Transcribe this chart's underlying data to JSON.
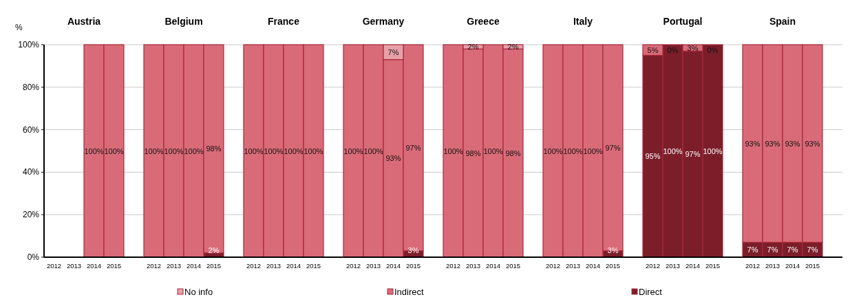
{
  "chart_data": [
    {
      "type": "bar",
      "title": "Austria",
      "ylabel": "%",
      "categories": [
        "2012",
        "2013",
        "2014",
        "2015"
      ],
      "stacked": true,
      "ylim": [
        0,
        100
      ],
      "yticks": [
        {
          "value": 0,
          "label": "0%"
        },
        {
          "value": 20,
          "label": "20%"
        },
        {
          "value": 40,
          "label": "40%"
        },
        {
          "value": 60,
          "label": "60%"
        },
        {
          "value": 80,
          "label": "80%"
        },
        {
          "value": 100,
          "label": "100%"
        }
      ],
      "grid": "y",
      "legend": "bottom",
      "series": [
        {
          "name": "Direct",
          "color": "#7b1e2a",
          "values": [
            null,
            null,
            0,
            0
          ]
        },
        {
          "name": "Indirect",
          "color": "#d96b78",
          "values": [
            null,
            null,
            100,
            100
          ],
          "value_labels": [
            null,
            null,
            "100%",
            "100%"
          ]
        },
        {
          "name": "No info",
          "color": "#e8a0a8",
          "values": [
            null,
            null,
            0,
            0
          ]
        }
      ]
    },
    {
      "type": "bar",
      "title": "Belgium",
      "categories": [
        "2012",
        "2013",
        "2014",
        "2015"
      ],
      "stacked": true,
      "ylim": [
        0,
        100
      ],
      "yticks": [
        0,
        20,
        40,
        60,
        80,
        100
      ],
      "grid": "y",
      "tick_labels": "x",
      "series": [
        {
          "color": "#7b1e2a",
          "values": [
            0,
            0,
            0,
            2
          ],
          "value_labels": [
            null,
            null,
            null,
            "2%"
          ]
        },
        {
          "color": "#d96b78",
          "values": [
            100,
            100,
            100,
            98
          ],
          "value_labels": [
            "100%",
            "100%",
            "100%",
            "98%"
          ]
        },
        {
          "color": "#e8a0a8",
          "values": [
            0,
            0,
            0,
            0
          ]
        }
      ]
    },
    {
      "type": "bar",
      "title": "France",
      "categories": [
        "2012",
        "2013",
        "2014",
        "2015"
      ],
      "stacked": true,
      "ylim": [
        0,
        100
      ],
      "yticks": [
        0,
        20,
        40,
        60,
        80,
        100
      ],
      "grid": "y",
      "tick_labels": "x",
      "series": [
        {
          "color": "#7b1e2a",
          "values": [
            0,
            0,
            0,
            0
          ]
        },
        {
          "color": "#d96b78",
          "values": [
            100,
            100,
            100,
            100
          ],
          "value_labels": [
            "100%",
            "100%",
            "100%",
            "100%"
          ]
        },
        {
          "color": "#e8a0a8",
          "values": [
            0,
            0,
            0,
            0
          ]
        }
      ]
    },
    {
      "type": "bar",
      "title": "Germany",
      "categories": [
        "2012",
        "2013",
        "2014",
        "2015"
      ],
      "stacked": true,
      "ylim": [
        0,
        100
      ],
      "yticks": [
        0,
        20,
        40,
        60,
        80,
        100
      ],
      "grid": "y",
      "tick_labels": "x",
      "series": [
        {
          "color": "#7b1e2a",
          "values": [
            0,
            0,
            0,
            3
          ],
          "value_labels": [
            null,
            null,
            null,
            "3%"
          ]
        },
        {
          "color": "#d96b78",
          "values": [
            100,
            100,
            93,
            97
          ],
          "value_labels": [
            "100%",
            "100%",
            "93%",
            "97%"
          ]
        },
        {
          "color": "#e8a0a8",
          "values": [
            0,
            0,
            7,
            0
          ],
          "value_labels": [
            null,
            null,
            "7%",
            null
          ]
        }
      ]
    },
    {
      "type": "bar",
      "title": "Greece",
      "categories": [
        "2012",
        "2013",
        "2014",
        "2015"
      ],
      "stacked": true,
      "ylim": [
        0,
        100
      ],
      "yticks": [
        0,
        20,
        40,
        60,
        80,
        100
      ],
      "grid": "y",
      "tick_labels": "x",
      "series": [
        {
          "color": "#7b1e2a",
          "values": [
            0,
            0,
            0,
            0
          ]
        },
        {
          "color": "#d96b78",
          "values": [
            100,
            98,
            100,
            98
          ],
          "value_labels": [
            "100%",
            "98%",
            "100%",
            "98%"
          ]
        },
        {
          "color": "#e8a0a8",
          "values": [
            0,
            2,
            0,
            2
          ],
          "value_labels": [
            null,
            "2%",
            null,
            "2%"
          ]
        }
      ]
    },
    {
      "type": "bar",
      "title": "Italy",
      "categories": [
        "2012",
        "2013",
        "2014",
        "2015"
      ],
      "stacked": true,
      "ylim": [
        0,
        100
      ],
      "yticks": [
        0,
        20,
        40,
        60,
        80,
        100
      ],
      "grid": "y",
      "tick_labels": "x",
      "series": [
        {
          "color": "#7b1e2a",
          "values": [
            0,
            0,
            0,
            3
          ],
          "value_labels": [
            null,
            null,
            null,
            "3%"
          ]
        },
        {
          "color": "#d96b78",
          "values": [
            100,
            100,
            100,
            97
          ],
          "value_labels": [
            "100%",
            "100%",
            "100%",
            "97%"
          ]
        },
        {
          "color": "#e8a0a8",
          "values": [
            0,
            0,
            0,
            0
          ]
        }
      ]
    },
    {
      "type": "bar",
      "title": "Portugal",
      "categories": [
        "2012",
        "2013",
        "2014",
        "2015"
      ],
      "stacked": true,
      "ylim": [
        0,
        100
      ],
      "yticks": [
        0,
        20,
        40,
        60,
        80,
        100
      ],
      "grid": "y",
      "tick_labels": "x",
      "series": [
        {
          "color": "#7b1e2a",
          "values": [
            95,
            100,
            97,
            100
          ],
          "value_labels": [
            "95%",
            "100%",
            "97%",
            "100%"
          ]
        },
        {
          "color": "#d96b78",
          "values": [
            5,
            0,
            3,
            0
          ],
          "value_labels": [
            "5%",
            "0%",
            "3%",
            "0%"
          ]
        },
        {
          "color": "#e8a0a8",
          "values": [
            0,
            0,
            0,
            0
          ]
        }
      ]
    },
    {
      "type": "bar",
      "title": "Spain",
      "categories": [
        "2012",
        "2013",
        "2014",
        "2015"
      ],
      "stacked": true,
      "ylim": [
        0,
        100
      ],
      "yticks": [
        0,
        20,
        40,
        60,
        80,
        100
      ],
      "grid": "y",
      "tick_labels": "x",
      "series": [
        {
          "color": "#7b1e2a",
          "values": [
            7,
            7,
            7,
            7
          ],
          "value_labels": [
            "7%",
            "7%",
            "7%",
            "7%"
          ]
        },
        {
          "color": "#d96b78",
          "values": [
            93,
            93,
            93,
            93
          ],
          "value_labels": [
            "93%",
            "93%",
            "93%",
            "93%"
          ]
        },
        {
          "color": "#e8a0a8",
          "values": [
            0,
            0,
            0,
            0
          ]
        }
      ]
    }
  ]
}
